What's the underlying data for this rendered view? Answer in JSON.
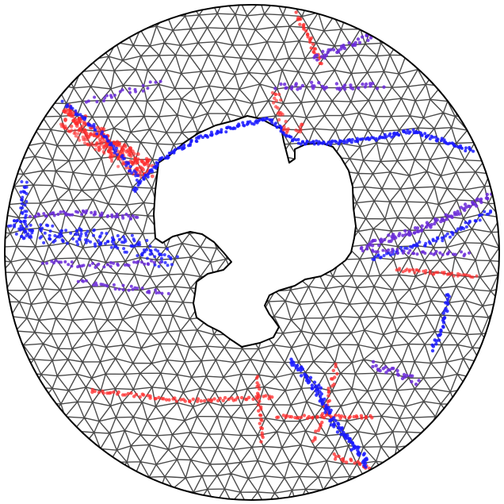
{
  "map": {
    "projection": "south-polar-stereographic",
    "grid": "triangular-mesh",
    "colors": {
      "background": "#ffffff",
      "mesh_edge": "#4a4a4a",
      "outline": "#000000",
      "land_fill": "#ffffff",
      "track_red": "#ff2a2a",
      "track_blue": "#1a1aff",
      "track_purple": "#6a2ad8"
    },
    "track_colors": [
      "red",
      "blue",
      "purple"
    ],
    "legend": null,
    "title": null
  }
}
